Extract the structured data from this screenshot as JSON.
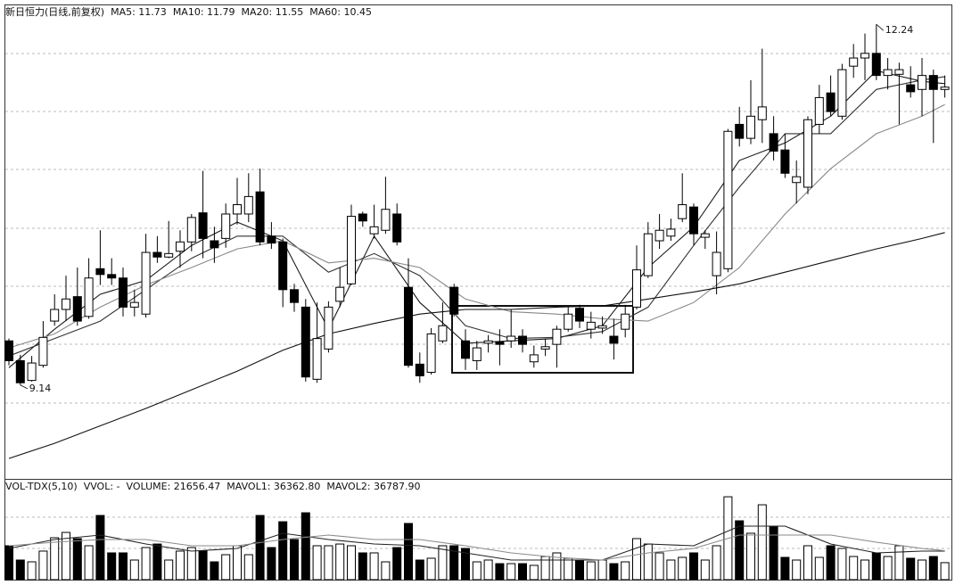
{
  "chart_data": [
    {
      "type": "candlestick",
      "title": "新日恒力(日线,前复权)",
      "ylim": [
        8.48,
        12.41
      ],
      "up_color": "#ffffff",
      "down_color": "#000000",
      "open": [
        9.52,
        9.35,
        9.18,
        9.31,
        9.69,
        9.79,
        9.9,
        9.73,
        10.14,
        10.09,
        10.06,
        9.81,
        9.75,
        10.28,
        10.24,
        10.29,
        10.37,
        10.62,
        10.38,
        10.4,
        10.61,
        10.61,
        10.8,
        10.42,
        10.37,
        9.96,
        9.81,
        9.19,
        9.45,
        9.86,
        10.01,
        10.61,
        10.44,
        10.47,
        10.61,
        9.98,
        9.32,
        9.25,
        9.52,
        9.98,
        9.52,
        9.35,
        9.5,
        9.51,
        9.52,
        9.56,
        9.34,
        9.45,
        9.49,
        9.62,
        9.8,
        9.62,
        9.63,
        9.56,
        9.62,
        9.81,
        10.08,
        10.38,
        10.42,
        10.57,
        10.67,
        10.41,
        10.08,
        10.14,
        11.38,
        11.26,
        11.42,
        11.3,
        11.16,
        10.88,
        10.84,
        11.38,
        11.65,
        11.45,
        11.88,
        11.95,
        11.99,
        11.8,
        11.81,
        11.72,
        11.68,
        11.8,
        11.68
      ],
      "high": [
        9.54,
        9.4,
        9.39,
        9.69,
        9.92,
        10.08,
        10.15,
        10.23,
        10.47,
        10.23,
        10.15,
        9.96,
        10.44,
        10.42,
        10.55,
        10.47,
        10.61,
        10.98,
        10.5,
        10.7,
        10.92,
        10.96,
        11.0,
        10.54,
        10.4,
        10.01,
        9.88,
        9.85,
        9.86,
        10.15,
        10.69,
        10.63,
        10.69,
        10.93,
        10.7,
        10.23,
        9.42,
        9.63,
        9.85,
        10.01,
        9.62,
        9.52,
        9.57,
        9.62,
        9.79,
        9.62,
        9.48,
        9.54,
        9.65,
        9.81,
        9.83,
        9.77,
        9.73,
        9.71,
        9.83,
        10.34,
        10.54,
        10.61,
        10.57,
        10.96,
        10.7,
        10.47,
        10.46,
        11.34,
        11.53,
        11.76,
        12.03,
        11.45,
        11.3,
        11.07,
        11.45,
        11.72,
        11.8,
        11.9,
        12.07,
        12.16,
        12.24,
        11.95,
        11.91,
        11.88,
        11.95,
        11.85,
        11.8
      ],
      "low": [
        9.31,
        9.14,
        9.17,
        9.29,
        9.65,
        9.69,
        9.65,
        9.71,
        10.0,
        10.0,
        9.73,
        9.73,
        9.72,
        10.19,
        10.23,
        10.15,
        10.29,
        10.23,
        10.19,
        10.32,
        10.52,
        10.54,
        10.34,
        10.31,
        9.81,
        9.77,
        9.17,
        9.16,
        9.42,
        9.81,
        10.0,
        10.5,
        10.4,
        10.44,
        10.34,
        9.29,
        9.16,
        9.23,
        9.5,
        9.73,
        9.27,
        9.27,
        9.42,
        9.31,
        9.46,
        9.42,
        9.29,
        9.39,
        9.29,
        9.6,
        9.63,
        9.54,
        9.58,
        9.36,
        9.55,
        9.79,
        10.06,
        10.31,
        10.38,
        10.54,
        10.34,
        10.31,
        9.92,
        10.11,
        11.19,
        11.21,
        11.22,
        11.07,
        10.92,
        10.7,
        10.78,
        11.3,
        11.45,
        11.42,
        11.78,
        11.76,
        11.76,
        11.68,
        11.38,
        11.61,
        11.45,
        11.22,
        11.61
      ],
      "close": [
        9.35,
        9.16,
        9.33,
        9.55,
        9.79,
        9.88,
        9.69,
        10.06,
        10.09,
        10.06,
        9.81,
        9.85,
        10.28,
        10.24,
        10.27,
        10.37,
        10.58,
        10.4,
        10.32,
        10.61,
        10.69,
        10.76,
        10.37,
        10.36,
        9.96,
        9.85,
        9.21,
        9.54,
        9.81,
        9.98,
        10.59,
        10.55,
        10.5,
        10.65,
        10.37,
        9.31,
        9.22,
        9.58,
        9.65,
        9.75,
        9.37,
        9.46,
        9.52,
        9.49,
        9.56,
        9.49,
        9.4,
        9.47,
        9.62,
        9.75,
        9.69,
        9.68,
        9.65,
        9.5,
        9.75,
        10.13,
        10.44,
        10.47,
        10.48,
        10.69,
        10.44,
        10.44,
        10.28,
        11.32,
        11.26,
        11.45,
        11.53,
        11.15,
        10.96,
        10.93,
        11.42,
        11.61,
        11.49,
        11.85,
        11.95,
        11.99,
        11.8,
        11.85,
        11.85,
        11.66,
        11.8,
        11.68,
        11.7
      ],
      "high_label": "12.24",
      "low_label": "9.14",
      "series": [
        {
          "name": "MA5: 11.73",
          "color": "#1a1a1a",
          "x": [
            0,
            4,
            8,
            12,
            16,
            20,
            24,
            28,
            32,
            36,
            40,
            44,
            48,
            52,
            56,
            60,
            64,
            68,
            72,
            76,
            80,
            82
          ],
          "values": [
            9.29,
            9.62,
            9.92,
            10.04,
            10.34,
            10.54,
            10.38,
            9.62,
            10.42,
            9.85,
            9.5,
            9.52,
            9.54,
            9.65,
            10.15,
            10.5,
            11.07,
            11.22,
            11.45,
            11.84,
            11.75,
            11.73
          ]
        },
        {
          "name": "MA10: 11.79",
          "color": "#333333",
          "x": [
            0,
            4,
            8,
            12,
            16,
            20,
            24,
            28,
            32,
            36,
            40,
            44,
            48,
            52,
            56,
            60,
            64,
            68,
            72,
            76,
            80,
            82
          ],
          "values": [
            9.39,
            9.54,
            9.69,
            9.96,
            10.23,
            10.42,
            10.42,
            10.11,
            10.27,
            10.08,
            9.65,
            9.54,
            9.55,
            9.6,
            9.81,
            10.34,
            10.84,
            11.3,
            11.3,
            11.68,
            11.76,
            11.79
          ]
        },
        {
          "name": "MA20: 11.55",
          "color": "#888888",
          "x": [
            0,
            4,
            8,
            12,
            16,
            20,
            24,
            28,
            32,
            36,
            40,
            44,
            48,
            52,
            56,
            60,
            64,
            68,
            72,
            76,
            80,
            82
          ],
          "values": [
            9.46,
            9.58,
            9.81,
            10.0,
            10.15,
            10.31,
            10.38,
            10.19,
            10.23,
            10.15,
            9.88,
            9.77,
            9.75,
            9.71,
            9.69,
            9.85,
            10.15,
            10.61,
            11.0,
            11.3,
            11.45,
            11.55
          ]
        },
        {
          "name": "MA60: 10.45",
          "color": "#111111",
          "x": [
            0,
            4,
            8,
            12,
            16,
            20,
            24,
            28,
            32,
            36,
            40,
            44,
            48,
            52,
            56,
            60,
            64,
            68,
            72,
            76,
            80,
            82
          ],
          "values": [
            8.51,
            8.64,
            8.79,
            8.94,
            9.1,
            9.26,
            9.44,
            9.58,
            9.67,
            9.75,
            9.79,
            9.79,
            9.81,
            9.82,
            9.88,
            9.94,
            10.01,
            10.11,
            10.21,
            10.31,
            10.4,
            10.45
          ]
        }
      ]
    },
    {
      "type": "volume",
      "title": "VOL-TDX(5,10)",
      "subtitle": "VVOL: -",
      "ylim": [
        0,
        125000
      ],
      "volume": {
        "name": "VOLUME: 21656.47",
        "values": [
          43200,
          25000,
          22700,
          36400,
          53400,
          60200,
          52300,
          43200,
          81800,
          34100,
          34100,
          25000,
          40900,
          45400,
          25000,
          36400,
          40900,
          36400,
          22700,
          31800,
          43200,
          31800,
          81800,
          40900,
          73800,
          51100,
          85200,
          43200,
          43200,
          45400,
          43200,
          34100,
          34100,
          22700,
          40900,
          71600,
          25000,
          27300,
          43200,
          43200,
          39800,
          22700,
          25000,
          20400,
          20400,
          20400,
          18200,
          29500,
          34100,
          27300,
          25000,
          22700,
          25000,
          20400,
          22700,
          52300,
          45400,
          34100,
          25000,
          28400,
          34100,
          25000,
          43200,
          105600,
          75000,
          59100,
          95400,
          68200,
          28400,
          25000,
          43200,
          28400,
          43200,
          39800,
          29500,
          25000,
          34100,
          29500,
          43200,
          27300,
          25000,
          29500,
          21656.47
        ]
      },
      "series": [
        {
          "name": "MAVOL1: 36362.80",
          "color": "#222222",
          "x": [
            0,
            4,
            8,
            12,
            16,
            20,
            24,
            28,
            32,
            36,
            40,
            44,
            48,
            52,
            56,
            60,
            64,
            68,
            72,
            76,
            80,
            82
          ],
          "values": [
            39800,
            51100,
            56800,
            45400,
            36400,
            39800,
            59100,
            51100,
            45400,
            43200,
            34100,
            25000,
            25000,
            25000,
            45400,
            43200,
            68200,
            68200,
            45400,
            34100,
            36400,
            36362.8
          ]
        },
        {
          "name": "MAVOL2: 36787.90",
          "color": "#8a8a8a",
          "x": [
            0,
            4,
            8,
            12,
            16,
            20,
            24,
            28,
            32,
            36,
            40,
            44,
            48,
            52,
            56,
            60,
            64,
            68,
            72,
            76,
            80,
            82
          ],
          "values": [
            43200,
            47700,
            51100,
            51100,
            43200,
            43200,
            51100,
            56800,
            51100,
            51100,
            43200,
            34100,
            28400,
            25000,
            34100,
            39800,
            56800,
            56800,
            56800,
            47700,
            39800,
            36787.9
          ]
        }
      ]
    }
  ]
}
